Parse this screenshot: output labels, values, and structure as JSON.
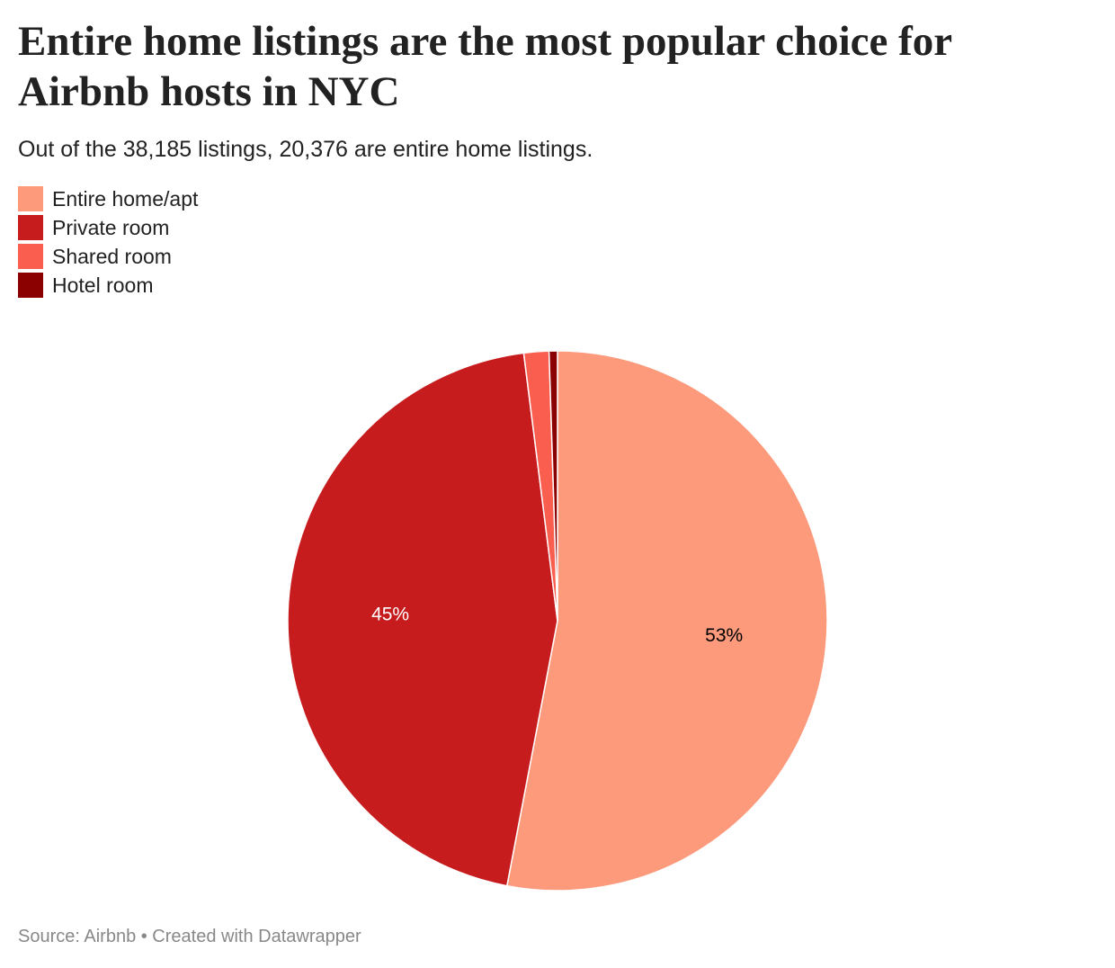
{
  "chart_data": {
    "type": "pie",
    "title": "Entire home listings are the most popular choice for Airbnb hosts in NYC",
    "subtitle": "Out of the 38,185 listings, 20,376 are entire home listings.",
    "categories": [
      "Entire home/apt",
      "Private room",
      "Shared room",
      "Hotel room"
    ],
    "values": [
      53,
      45,
      1.5,
      0.5
    ],
    "value_labels": [
      "53%",
      "45%",
      null,
      null
    ],
    "colors": [
      "#fc9a7b",
      "#c71c1e",
      "#fa5e4f",
      "#8b0000"
    ],
    "source": "Source: Airbnb • Created with Datawrapper"
  }
}
